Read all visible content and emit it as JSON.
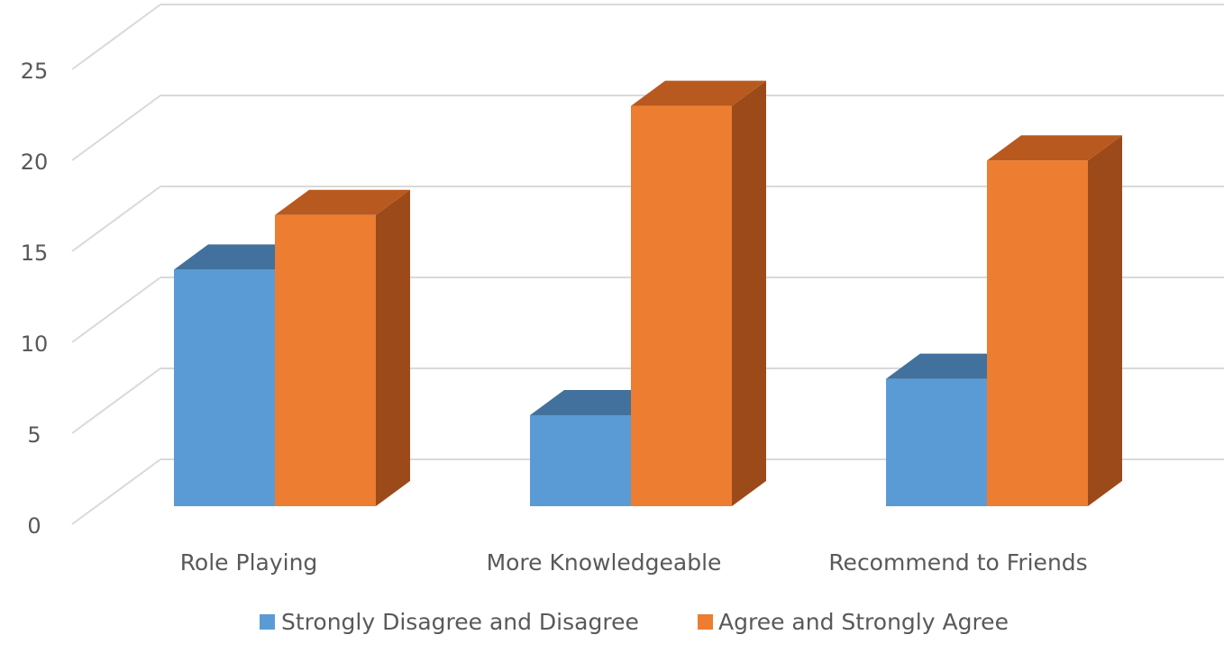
{
  "chart_data": {
    "type": "bar",
    "style": "3d-clustered-column",
    "title": "",
    "xlabel": "",
    "ylabel": "",
    "categories": [
      "Role Playing",
      "More Knowledgeable",
      "Recommend to Friends"
    ],
    "series": [
      {
        "name": "Strongly Disagree and Disagree",
        "values": [
          13,
          5,
          7
        ],
        "color": "#5B9BD5",
        "top_color": "#41719C",
        "side_color": "#41719C"
      },
      {
        "name": "Agree and Strongly Agree",
        "values": [
          16,
          22,
          19
        ],
        "color": "#ED7D31",
        "top_color": "#B85A1F",
        "side_color": "#9C4A1A"
      }
    ],
    "ylim": [
      0,
      25
    ],
    "yticks": [
      "0",
      "5",
      "10",
      "15",
      "20",
      "25"
    ],
    "grid": true,
    "legend_position": "bottom"
  }
}
